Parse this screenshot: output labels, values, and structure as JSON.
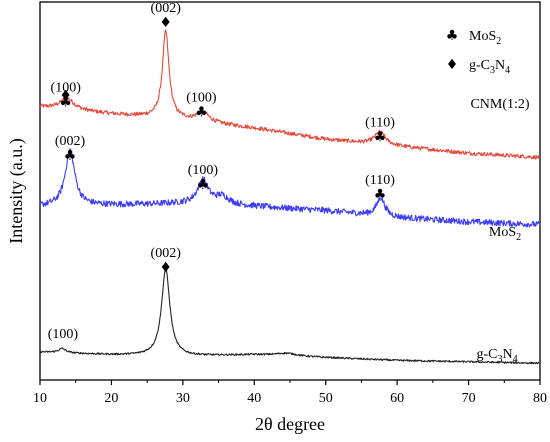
{
  "chart_data": {
    "type": "line",
    "xlabel": "2θ degree",
    "ylabel": "Intensity (a.u.)",
    "xlim": [
      10,
      80
    ],
    "x_ticks": [
      "10",
      "20",
      "30",
      "40",
      "50",
      "60",
      "70",
      "80"
    ],
    "grid": false,
    "legend": {
      "placement": "top-right",
      "items": [
        {
          "symbol": "♣",
          "symbol_name": "club-icon",
          "base": "MoS",
          "sub": "2"
        },
        {
          "symbol": "♦",
          "symbol_name": "diamond-icon",
          "parts": [
            {
              "t": "g-C",
              "sub": false
            },
            {
              "t": "3",
              "sub": true
            },
            {
              "t": "N",
              "sub": false
            },
            {
              "t": "4",
              "sub": true
            }
          ]
        }
      ]
    },
    "series": [
      {
        "name": "CNM(1:2)",
        "color": "#8B1A1A",
        "noise_color": "#e8483a",
        "baseline": [
          [
            10,
            85
          ],
          [
            20,
            80
          ],
          [
            30,
            76
          ],
          [
            40,
            70
          ],
          [
            50,
            62
          ],
          [
            60,
            57
          ],
          [
            70,
            52
          ],
          [
            80,
            49
          ]
        ],
        "peaks": [
          {
            "center": 13.8,
            "height": 8,
            "width": 1.2
          },
          {
            "center": 27.6,
            "height": 62,
            "width": 0.55
          },
          {
            "center": 32.8,
            "height": 7,
            "width": 1.0
          },
          {
            "center": 57.6,
            "height": 9,
            "width": 0.9
          }
        ],
        "noise": 1.4
      },
      {
        "name_parts": [
          {
            "t": "MoS",
            "sub": false
          },
          {
            "t": "2",
            "sub": true
          }
        ],
        "color": "#1a1ad0",
        "noise_color": "#3b3bff",
        "baseline": [
          [
            10,
            14
          ],
          [
            20,
            15
          ],
          [
            30,
            16
          ],
          [
            40,
            14
          ],
          [
            50,
            11
          ],
          [
            60,
            6
          ],
          [
            70,
            3
          ],
          [
            80,
            1
          ]
        ],
        "peaks": [
          {
            "center": 14.2,
            "height": 40,
            "width": 0.8
          },
          {
            "center": 32.8,
            "height": 17,
            "width": 0.9
          },
          {
            "center": 35.5,
            "height": 6,
            "width": 1.2
          },
          {
            "center": 57.7,
            "height": 13,
            "width": 0.7
          }
        ],
        "noise": 2.2
      },
      {
        "name_parts": [
          {
            "t": "g-C",
            "sub": false
          },
          {
            "t": "3",
            "sub": true
          },
          {
            "t": "N",
            "sub": false
          },
          {
            "t": "4",
            "sub": true
          }
        ],
        "color": "#000000",
        "noise_color": "#222222",
        "baseline": [
          [
            10,
            -90
          ],
          [
            20,
            -92
          ],
          [
            30,
            -93
          ],
          [
            40,
            -92
          ],
          [
            50,
            -94
          ],
          [
            60,
            -96
          ],
          [
            70,
            -97
          ],
          [
            80,
            -98
          ]
        ],
        "peaks": [
          {
            "center": 13.1,
            "height": 3,
            "width": 0.6
          },
          {
            "center": 27.6,
            "height": 62,
            "width": 0.7
          },
          {
            "center": 44.5,
            "height": 2,
            "width": 1.8
          }
        ],
        "noise": 0.6
      }
    ],
    "annotations": [
      {
        "text": "(100)",
        "symbol": "♣",
        "x": 13.6,
        "y": 96
      },
      {
        "text": "♦",
        "x": 13.6,
        "y": 90
      },
      {
        "text": "(002)",
        "symbol": "♦",
        "x": 27.6,
        "y": 153
      },
      {
        "text": "(100)",
        "symbol": "♣",
        "x": 32.6,
        "y": 89
      },
      {
        "text": "(110)",
        "symbol": "♣",
        "x": 57.6,
        "y": 71
      },
      {
        "text": "(002)",
        "symbol": "♣",
        "x": 14.2,
        "y": 58
      },
      {
        "text": "(100)",
        "symbol": "♣",
        "x": 32.8,
        "y": 37
      },
      {
        "text": "(110)",
        "symbol": "♣",
        "x": 57.6,
        "y": 30
      },
      {
        "text": "(002)",
        "symbol": "♦",
        "x": 27.6,
        "y": -22
      },
      {
        "text": "(100)",
        "x": 13.2,
        "y": -80
      }
    ]
  }
}
